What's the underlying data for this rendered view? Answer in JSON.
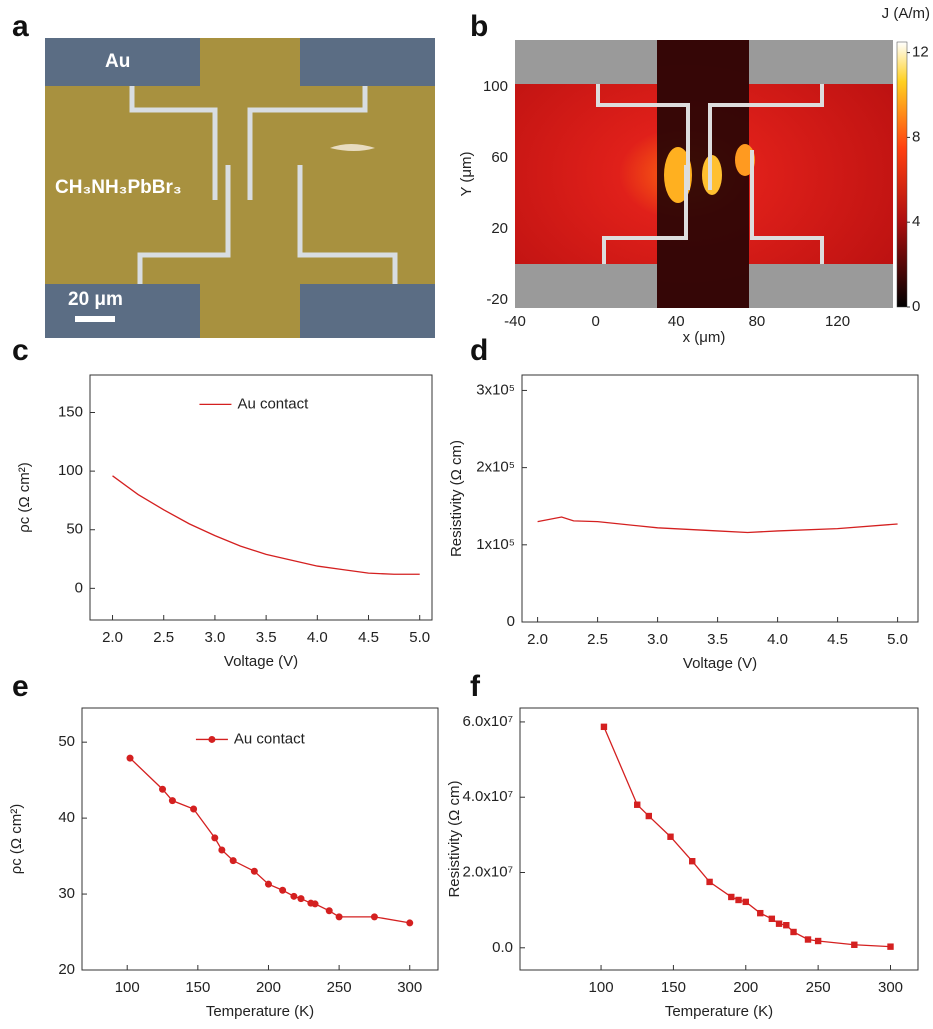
{
  "panel_labels": [
    "a",
    "b",
    "c",
    "d",
    "e",
    "f"
  ],
  "micrograph": {
    "labels": [
      "Au",
      "CH₃NH₃PbBr₃",
      "20 μm"
    ]
  },
  "chart_data": [
    {
      "type": "image",
      "xlabel": "x (μm)",
      "ylabel": "Y (μm)",
      "xlim": [
        -40,
        147.5
      ],
      "xticks": [
        -40,
        0,
        40,
        80,
        120
      ],
      "ylim": [
        -24.5,
        126.5
      ],
      "yticks": [
        -20,
        20,
        60,
        100
      ],
      "colorbar": {
        "label": "J (A/m)",
        "lim": [
          0,
          12.5
        ],
        "ticks": [
          0,
          4,
          8,
          12
        ]
      }
    },
    {
      "type": "line",
      "xlabel": "Voltage (V)",
      "ylabel": "ρc (Ω cm²)",
      "xlim": [
        1.78,
        5.12
      ],
      "xticks": [
        {
          "value": 2,
          "label": "2.0"
        },
        2.5,
        {
          "value": 3,
          "label": "3.0"
        },
        3.5,
        {
          "value": 4,
          "label": "4.0"
        },
        4.5,
        {
          "value": 5,
          "label": "5.0"
        }
      ],
      "ylim": [
        -27,
        182
      ],
      "yticks": [
        0,
        50,
        100,
        150
      ],
      "x": [
        2.0,
        2.25,
        2.5,
        2.75,
        3.0,
        3.25,
        3.5,
        3.75,
        4.0,
        4.25,
        4.5,
        4.75,
        5.0
      ],
      "series": [
        {
          "name": "Au contact",
          "color": "#d42020",
          "values": [
            96,
            80,
            67,
            55,
            45,
            36,
            29,
            24,
            19,
            16,
            13,
            12,
            12
          ]
        }
      ]
    },
    {
      "type": "line",
      "xlabel": "Voltage (V)",
      "ylabel": "Resistivity (Ω cm)",
      "xlim": [
        1.87,
        5.17
      ],
      "xticks": [
        {
          "value": 2,
          "label": "2.0"
        },
        2.5,
        {
          "value": 3,
          "label": "3.0"
        },
        3.5,
        {
          "value": 4,
          "label": "4.0"
        },
        4.5,
        {
          "value": 5,
          "label": "5.0"
        }
      ],
      "ylim": [
        0,
        320000
      ],
      "yticks": [
        0,
        {
          "value": 100000,
          "label": "1x10⁵"
        },
        {
          "value": 200000,
          "label": "2x10⁵"
        },
        {
          "value": 300000,
          "label": "3x10⁵"
        }
      ],
      "x": [
        2.0,
        2.2,
        2.3,
        2.5,
        3.0,
        3.5,
        3.75,
        4.0,
        4.5,
        5.0
      ],
      "series": [
        {
          "color": "#d42020",
          "values": [
            130000,
            136000,
            131000,
            130000,
            122000,
            118000,
            116000,
            118000,
            121000,
            127000
          ]
        }
      ]
    },
    {
      "type": "line",
      "xlabel": "Temperature (K)",
      "ylabel": "ρc (Ω cm²)",
      "xlim": [
        68,
        320
      ],
      "xticks": [
        100,
        150,
        200,
        250,
        300
      ],
      "ylim": [
        20,
        54.5
      ],
      "yticks": [
        20,
        30,
        40,
        50
      ],
      "x": [
        102,
        125,
        132,
        147,
        162,
        167,
        175,
        190,
        200,
        210,
        218,
        223,
        230,
        233,
        243,
        250,
        275,
        300
      ],
      "series": [
        {
          "name": "Au contact",
          "color": "#d42020",
          "marker": "circle",
          "values": [
            47.9,
            43.8,
            42.3,
            41.2,
            37.4,
            35.8,
            34.4,
            33,
            31.3,
            30.5,
            29.7,
            29.4,
            28.8,
            28.7,
            27.8,
            27,
            27,
            26.2
          ]
        }
      ]
    },
    {
      "type": "line",
      "xlabel": "Temperature (K)",
      "ylabel": "Resistivity (Ω cm)",
      "xlim": [
        44,
        319
      ],
      "xticks": [
        100,
        150,
        200,
        250,
        300
      ],
      "ylim": [
        -5900000,
        63700000
      ],
      "yticks": [
        {
          "value": 0,
          "label": "0.0"
        },
        {
          "value": 20000000,
          "label": "2.0x10⁷"
        },
        {
          "value": 40000000,
          "label": "4.0x10⁷"
        },
        {
          "value": 60000000,
          "label": "6.0x10⁷"
        }
      ],
      "x": [
        102,
        125,
        133,
        148,
        163,
        175,
        190,
        195,
        200,
        210,
        218,
        223,
        228,
        233,
        243,
        250,
        275,
        300
      ],
      "series": [
        {
          "color": "#d42020",
          "marker": "square",
          "values": [
            58700000,
            38000000,
            35000000,
            29500000,
            23000000,
            17500000,
            13500000,
            12700000,
            12200000,
            9200000,
            7700000,
            6400000,
            6000000,
            4200000,
            2200000,
            1800000,
            800000,
            300000
          ]
        }
      ]
    }
  ]
}
